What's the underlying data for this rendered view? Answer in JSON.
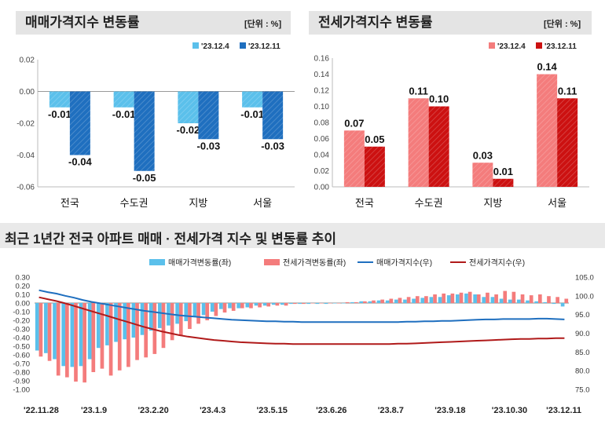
{
  "left_panel": {
    "title": "매매가격지수 변동률",
    "unit": "[단위 : %]"
  },
  "right_panel": {
    "title": "전세가격지수 변동률",
    "unit": "[단위 : %]"
  },
  "bottom_panel": {
    "title": "최근 1년간 전국 아파트 매매 · 전세가격 지수 및 변동률 추이"
  },
  "colors": {
    "sale_light": "#5bc0eb",
    "sale_dark": "#1f6fbf",
    "rent_light": "#f47c7c",
    "rent_dark": "#cc1111",
    "sale_line": "#1f6fbf",
    "rent_line": "#b01a1a"
  },
  "chart_data": [
    {
      "type": "bar",
      "title": "매매가격지수 변동률",
      "categories": [
        "전국",
        "수도권",
        "지방",
        "서울"
      ],
      "series": [
        {
          "name": "'23.12.4",
          "values": [
            -0.01,
            -0.01,
            -0.02,
            -0.01
          ]
        },
        {
          "name": "'23.12.11",
          "values": [
            -0.04,
            -0.05,
            -0.03,
            -0.03
          ]
        }
      ],
      "ylim": [
        -0.06,
        0.02
      ],
      "yticks": [
        "0.02",
        "0.00",
        "-0.02",
        "-0.04",
        "-0.06"
      ],
      "data_labels": [
        [
          "-0.01",
          "-0.04"
        ],
        [
          "-0.01",
          "-0.05"
        ],
        [
          "-0.02",
          "-0.03"
        ],
        [
          "-0.01",
          "-0.03"
        ]
      ],
      "legend": "top-right"
    },
    {
      "type": "bar",
      "title": "전세가격지수 변동률",
      "categories": [
        "전국",
        "수도권",
        "지방",
        "서울"
      ],
      "series": [
        {
          "name": "'23.12.4",
          "values": [
            0.07,
            0.11,
            0.03,
            0.14
          ]
        },
        {
          "name": "'23.12.11",
          "values": [
            0.05,
            0.1,
            0.01,
            0.11
          ]
        }
      ],
      "ylim": [
        0,
        0.16
      ],
      "yticks": [
        "0.16",
        "0.14",
        "0.12",
        "0.10",
        "0.08",
        "0.06",
        "0.04",
        "0.02",
        "0.00"
      ],
      "data_labels": [
        [
          "0.07",
          "0.05"
        ],
        [
          "0.11",
          "0.10"
        ],
        [
          "0.03",
          "0.01"
        ],
        [
          "0.14",
          "0.11"
        ]
      ],
      "legend": "top-right"
    },
    {
      "type": "bar+line",
      "title": "최근 1년간 전국 아파트 매매 · 전세가격 지수 및 변동률 추이",
      "x_ticks": [
        "'22.11.28",
        "'23.1.9",
        "'23.2.20",
        "'23.4.3",
        "'23.5.15",
        "'23.6.26",
        "'23.8.7",
        "'23.9.18",
        "'23.10.30",
        "'23.12.11"
      ],
      "left_axis": {
        "ylim": [
          -1.0,
          0.3
        ],
        "ticks": [
          "0.30",
          "0.20",
          "0.10",
          "0.00",
          "-0.10",
          "-0.20",
          "-0.30",
          "-0.40",
          "-0.50",
          "-0.60",
          "-0.70",
          "-0.80",
          "-0.90",
          "-1.00"
        ]
      },
      "right_axis": {
        "ylim": [
          75.0,
          105.0
        ],
        "ticks": [
          "105.0",
          "100.0",
          "95.0",
          "90.0",
          "85.0",
          "80.0",
          "75.0"
        ]
      },
      "legend": [
        "매매가격변동률(좌)",
        "전세가격변동률(좌)",
        "매매가격지수(우)",
        "전세가격지수(우)"
      ],
      "sale_change": [
        -0.55,
        -0.58,
        -0.65,
        -0.73,
        -0.74,
        -0.73,
        -0.65,
        -0.52,
        -0.49,
        -0.45,
        -0.42,
        -0.4,
        -0.37,
        -0.32,
        -0.29,
        -0.26,
        -0.24,
        -0.21,
        -0.16,
        -0.14,
        -0.1,
        -0.07,
        -0.06,
        -0.06,
        -0.05,
        -0.03,
        -0.03,
        -0.02,
        -0.02,
        -0.01,
        -0.01,
        -0.01,
        -0.01,
        -0.01,
        0.0,
        0.0,
        0.01,
        0.02,
        0.02,
        0.03,
        0.03,
        0.04,
        0.04,
        0.05,
        0.06,
        0.07,
        0.07,
        0.09,
        0.1,
        0.11,
        0.1,
        0.07,
        0.07,
        0.05,
        0.04,
        0.04,
        0.03,
        0.02,
        0.01,
        -0.01,
        -0.04
      ],
      "rent_change": [
        -0.62,
        -0.67,
        -0.84,
        -0.86,
        -0.91,
        -0.92,
        -0.8,
        -0.76,
        -0.84,
        -0.78,
        -0.74,
        -0.66,
        -0.63,
        -0.59,
        -0.52,
        -0.43,
        -0.38,
        -0.3,
        -0.24,
        -0.2,
        -0.15,
        -0.11,
        -0.09,
        -0.06,
        -0.06,
        -0.05,
        -0.04,
        -0.03,
        -0.03,
        -0.01,
        -0.01,
        0.0,
        0.0,
        0.0,
        0.0,
        0.01,
        0.01,
        0.02,
        0.03,
        0.04,
        0.05,
        0.06,
        0.07,
        0.08,
        0.08,
        0.1,
        0.11,
        0.11,
        0.12,
        0.13,
        0.1,
        0.12,
        0.1,
        0.14,
        0.13,
        0.1,
        0.09,
        0.1,
        0.08,
        0.07,
        0.05
      ],
      "sale_index": [
        101.5,
        101.0,
        100.6,
        100.0,
        99.5,
        98.9,
        98.4,
        98.0,
        97.6,
        97.2,
        96.8,
        96.4,
        96.0,
        95.7,
        95.4,
        95.1,
        94.8,
        94.6,
        94.4,
        94.2,
        94.0,
        93.8,
        93.6,
        93.5,
        93.4,
        93.3,
        93.2,
        93.2,
        93.1,
        93.1,
        93.0,
        93.0,
        93.0,
        93.0,
        93.0,
        93.0,
        93.0,
        93.0,
        93.0,
        93.0,
        93.0,
        93.0,
        93.1,
        93.1,
        93.2,
        93.2,
        93.3,
        93.3,
        93.4,
        93.5,
        93.6,
        93.7,
        93.7,
        93.8,
        93.8,
        93.8,
        93.8,
        93.9,
        93.9,
        93.8,
        93.7
      ],
      "rent_index": [
        99.6,
        99.1,
        98.6,
        98.0,
        97.3,
        96.6,
        95.9,
        95.2,
        94.5,
        93.8,
        93.1,
        92.4,
        91.7,
        91.1,
        90.5,
        90.0,
        89.5,
        89.1,
        88.8,
        88.5,
        88.2,
        88.0,
        87.8,
        87.6,
        87.5,
        87.4,
        87.3,
        87.2,
        87.2,
        87.1,
        87.1,
        87.1,
        87.1,
        87.1,
        87.1,
        87.1,
        87.1,
        87.1,
        87.1,
        87.1,
        87.1,
        87.2,
        87.2,
        87.3,
        87.4,
        87.5,
        87.6,
        87.7,
        87.8,
        87.9,
        88.0,
        88.1,
        88.2,
        88.3,
        88.4,
        88.5,
        88.5,
        88.6,
        88.6,
        88.7,
        88.7
      ]
    }
  ]
}
